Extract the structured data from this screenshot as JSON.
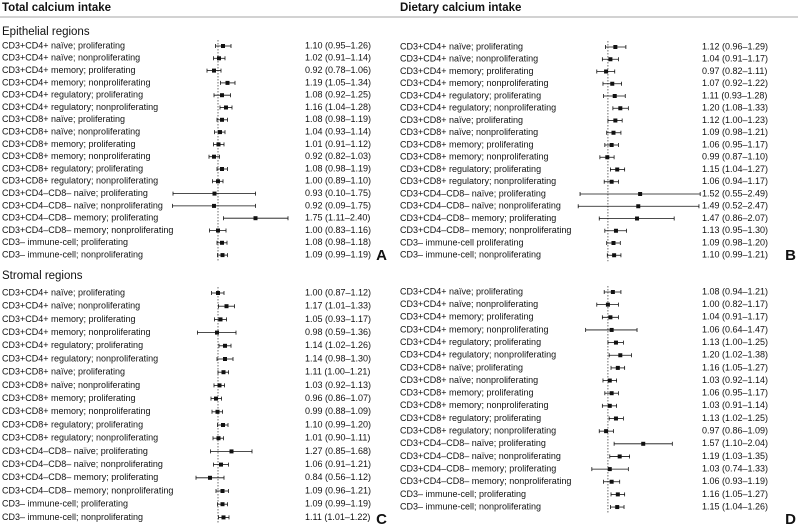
{
  "columns": [
    "Total calcium intake",
    "Dietary calcium intake"
  ],
  "sections": [
    "Epithelial regions",
    "Stromal regions"
  ],
  "chart_data": [
    {
      "type": "forest",
      "label": "A",
      "xlim": [
        0,
        2.6
      ],
      "reference": 1,
      "color": "#111111",
      "categories": [
        "CD3+CD4+ naïve; proliferating",
        "CD3+CD4+ naïve; nonproliferating",
        "CD3+CD4+ memory; proliferating",
        "CD3+CD4+ memory; nonproliferating",
        "CD3+CD4+ regulatory; proliferating",
        "CD3+CD4+ regulatory; nonproliferating",
        "CD3+CD8+ naïve; proliferating",
        "CD3+CD8+ naïve; nonproliferating",
        "CD3+CD8+ memory; proliferating",
        "CD3+CD8+ memory; nonproliferating",
        "CD3+CD8+ regulatory; proliferating",
        "CD3+CD8+ regulatory; nonproliferating",
        "CD3+CD4–CD8– naïve; proliferating",
        "CD3+CD4–CD8– naïve; nonproliferating",
        "CD3+CD4–CD8– memory; proliferating",
        "CD3+CD4–CD8– memory; nonproliferating",
        "CD3– immune-cell; proliferating",
        "CD3– immune-cell; nonproliferating"
      ],
      "values": [
        1.1,
        1.02,
        0.92,
        1.19,
        1.08,
        1.16,
        1.08,
        1.04,
        1.01,
        0.92,
        1.08,
        1.0,
        0.93,
        0.92,
        1.75,
        1.0,
        1.08,
        1.09
      ],
      "lower": [
        0.95,
        0.91,
        0.78,
        1.05,
        0.92,
        1.04,
        0.98,
        0.93,
        0.91,
        0.82,
        0.98,
        0.89,
        0.1,
        0.09,
        1.11,
        0.83,
        0.98,
        0.99
      ],
      "upper": [
        1.26,
        1.14,
        1.06,
        1.34,
        1.25,
        1.28,
        1.19,
        1.14,
        1.12,
        1.03,
        1.19,
        1.1,
        1.75,
        1.75,
        2.4,
        1.16,
        1.18,
        1.19
      ],
      "value_labels": [
        "1.10 (0.95–1.26)",
        "1.02 (0.91–1.14)",
        "0.92 (0.78–1.06)",
        "1.19 (1.05–1.34)",
        "1.08 (0.92–1.25)",
        "1.16 (1.04–1.28)",
        "1.08 (0.98–1.19)",
        "1.04 (0.93–1.14)",
        "1.01 (0.91–1.12)",
        "0.92 (0.82–1.03)",
        "1.08 (0.98–1.19)",
        "1.00 (0.89–1.10)",
        "0.93 (0.10–1.75)",
        "0.92 (0.09–1.75)",
        "1.75 (1.11–2.40)",
        "1.00 (0.83–1.16)",
        "1.08 (0.98–1.18)",
        "1.09 (0.99–1.19)"
      ]
    },
    {
      "type": "forest",
      "label": "B",
      "xlim": [
        0,
        2.6
      ],
      "reference": 1,
      "color": "#111111",
      "categories": [
        "CD3+CD4+ naïve; proliferating",
        "CD3+CD4+ naïve; nonproliferating",
        "CD3+CD4+ memory; proliferating",
        "CD3+CD4+ memory; nonproliferating",
        "CD3+CD4+ regulatory; proliferating",
        "CD3+CD4+ regulatory; nonproliferating",
        "CD3+CD8+ naïve; proliferating",
        "CD3+CD8+ naïve; nonproliferating",
        "CD3+CD8+ memory; proliferating",
        "CD3+CD8+ memory; nonproliferating",
        "CD3+CD8+ regulatory; proliferating",
        "CD3+CD8+ regulatory; nonproliferating",
        "CD3+CD4–CD8– naïve; proliferating",
        "CD3+CD4–CD8– naïve; nonproliferating",
        "CD3+CD4–CD8– memory; proliferating",
        "CD3+CD4–CD8– memory; nonproliferating",
        "CD3– immune-cell proliferating",
        "CD3– immune-cell; nonproliferating"
      ],
      "values": [
        1.12,
        1.04,
        0.97,
        1.07,
        1.11,
        1.2,
        1.12,
        1.09,
        1.06,
        0.99,
        1.15,
        1.06,
        1.52,
        1.49,
        1.47,
        1.13,
        1.09,
        1.1
      ],
      "lower": [
        0.96,
        0.91,
        0.82,
        0.92,
        0.93,
        1.08,
        1.0,
        0.98,
        0.95,
        0.87,
        1.04,
        0.94,
        0.55,
        0.52,
        0.86,
        0.95,
        0.98,
        0.99
      ],
      "upper": [
        1.29,
        1.17,
        1.11,
        1.22,
        1.28,
        1.33,
        1.23,
        1.21,
        1.17,
        1.1,
        1.27,
        1.17,
        2.49,
        2.47,
        2.07,
        1.3,
        1.2,
        1.21
      ],
      "value_labels": [
        "1.12 (0.96–1.29)",
        "1.04 (0.91–1.17)",
        "0.97 (0.82–1.11)",
        "1.07 (0.92–1.22)",
        "1.11 (0.93–1.28)",
        "1.20 (1.08–1.33)",
        "1.12 (1.00–1.23)",
        "1.09 (0.98–1.21)",
        "1.06 (0.95–1.17)",
        "0.99 (0.87–1.10)",
        "1.15 (1.04–1.27)",
        "1.06 (0.94–1.17)",
        "1.52 (0.55–2.49)",
        "1.49 (0.52–2.47)",
        "1.47 (0.86–2.07)",
        "1.13 (0.95–1.30)",
        "1.09 (0.98–1.20)",
        "1.10 (0.99–1.21)"
      ]
    },
    {
      "type": "forest",
      "label": "C",
      "xlim": [
        0,
        2.6
      ],
      "reference": 1,
      "color": "#111111",
      "categories": [
        "CD3+CD4+ naïve; proliferating",
        "CD3+CD4+ naïve; nonproliferating",
        "CD3+CD4+ memory; proliferating",
        "CD3+CD4+ memory; nonproliferating",
        "CD3+CD4+ regulatory; proliferating",
        "CD3+CD4+ regulatory; nonproliferating",
        "CD3+CD8+ naïve; proliferating",
        "CD3+CD8+ naïve; nonproliferating",
        "CD3+CD8+ memory; proliferating",
        "CD3+CD8+ memory; nonproliferating",
        "CD3+CD8+ regulatory; proliferating",
        "CD3+CD8+ regulatory; nonproliferating",
        "CD3+CD4–CD8– naïve; proliferating",
        "CD3+CD4–CD8– naïve; nonproliferating",
        "CD3+CD4–CD8– memory; proliferating",
        "CD3+CD4–CD8– memory; nonproliferating",
        "CD3– immune-cell; proliferating",
        "CD3– immune-cell; nonproliferating"
      ],
      "values": [
        1.0,
        1.17,
        1.05,
        0.98,
        1.14,
        1.14,
        1.11,
        1.03,
        0.96,
        0.99,
        1.1,
        1.01,
        1.27,
        1.06,
        0.84,
        1.09,
        1.09,
        1.11
      ],
      "lower": [
        0.87,
        1.01,
        0.93,
        0.59,
        1.02,
        0.98,
        1.0,
        0.92,
        0.86,
        0.88,
        0.99,
        0.9,
        0.85,
        0.91,
        0.56,
        0.96,
        0.99,
        1.01
      ],
      "upper": [
        1.12,
        1.33,
        1.17,
        1.36,
        1.26,
        1.3,
        1.21,
        1.13,
        1.07,
        1.09,
        1.2,
        1.11,
        1.68,
        1.21,
        1.12,
        1.21,
        1.19,
        1.22
      ],
      "value_labels": [
        "1.00 (0.87–1.12)",
        "1.17 (1.01–1.33)",
        "1.05 (0.93–1.17)",
        "0.98 (0.59–1.36)",
        "1.14 (1.02–1.26)",
        "1.14 (0.98–1.30)",
        "1.11 (1.00–1.21)",
        "1.03 (0.92–1.13)",
        "0.96 (0.86–1.07)",
        "0.99 (0.88–1.09)",
        "1.10 (0.99–1.20)",
        "1.01 (0.90–1.11)",
        "1.27 (0.85–1.68)",
        "1.06 (0.91–1.21)",
        "0.84 (0.56–1.12)",
        "1.09 (0.96–1.21)",
        "1.09 (0.99–1.19)",
        "1.11 (1.01–1.22)"
      ]
    },
    {
      "type": "forest",
      "label": "D",
      "xlim": [
        0,
        2.6
      ],
      "reference": 1,
      "color": "#111111",
      "categories": [
        "CD3+CD4+ naïve; proliferating",
        "CD3+CD4+ naïve; nonproliferating",
        "CD3+CD4+ memory; proliferating",
        "CD3+CD4+ memory; nonproliferating",
        "CD3+CD4+ regulatory; proliferating",
        "CD3+CD4+ regulatory; nonproliferating",
        "CD3+CD8+ naïve; proliferating",
        "CD3+CD8+ naïve; nonproliferating",
        "CD3+CD8+ memory; proliferating",
        "CD3+CD8+ memory; nonproliferating",
        "CD3+CD8+ regulatory; proliferating",
        "CD3+CD8+ regulatory; nonproliferating",
        "CD3+CD4–CD8– naïve; proliferating",
        "CD3+CD4–CD8– naïve; nonproliferating",
        "CD3+CD4–CD8– memory; proliferating",
        "CD3+CD4–CD8– memory; nonproliferating",
        "CD3– immune-cell; proliferating",
        "CD3– immune-cell; nonproliferating"
      ],
      "values": [
        1.08,
        1.0,
        1.04,
        1.06,
        1.13,
        1.2,
        1.16,
        1.03,
        1.06,
        1.03,
        1.13,
        0.97,
        1.57,
        1.19,
        1.03,
        1.06,
        1.16,
        1.15
      ],
      "lower": [
        0.94,
        0.82,
        0.91,
        0.64,
        1.0,
        1.02,
        1.05,
        0.92,
        0.95,
        0.91,
        1.02,
        0.86,
        1.1,
        1.03,
        0.74,
        0.93,
        1.05,
        1.04
      ],
      "upper": [
        1.21,
        1.17,
        1.17,
        1.47,
        1.25,
        1.38,
        1.27,
        1.14,
        1.17,
        1.14,
        1.25,
        1.09,
        2.04,
        1.35,
        1.33,
        1.19,
        1.27,
        1.26
      ],
      "value_labels": [
        "1.08 (0.94–1.21)",
        "1.00 (0.82–1.17)",
        "1.04 (0.91–1.17)",
        "1.06 (0.64–1.47)",
        "1.13 (1.00–1.25)",
        "1.20 (1.02–1.38)",
        "1.16 (1.05–1.27)",
        "1.03 (0.92–1.14)",
        "1.06 (0.95–1.17)",
        "1.03 (0.91–1.14)",
        "1.13 (1.02–1.25)",
        "0.97 (0.86–1.09)",
        "1.57 (1.10–2.04)",
        "1.19 (1.03–1.35)",
        "1.03 (0.74–1.33)",
        "1.06 (0.93–1.19)",
        "1.16 (1.05–1.27)",
        "1.15 (1.04–1.26)"
      ]
    }
  ]
}
